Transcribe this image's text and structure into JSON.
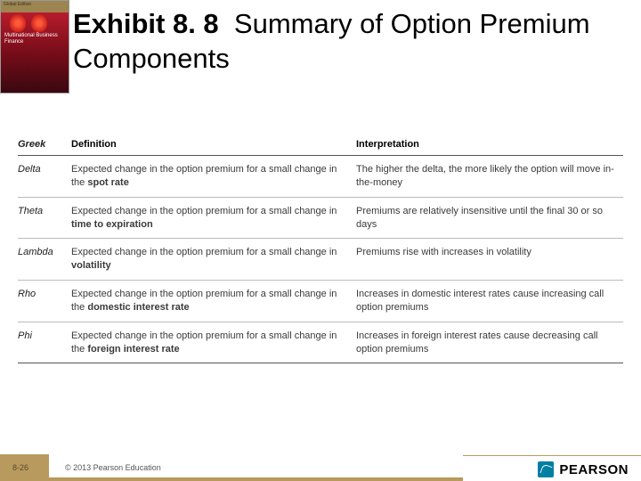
{
  "cover": {
    "series": "Global Edition",
    "book_title": "Multinational Business Finance"
  },
  "title": {
    "prefix": "Exhibit 8. 8",
    "rest": "Summary of Option Premium Components"
  },
  "table": {
    "headers": {
      "greek": "Greek",
      "definition": "Definition",
      "interpretation": "Interpretation"
    },
    "rows": [
      {
        "greek": "Delta",
        "def_lead": "Expected change in the option premium for a small change in the ",
        "def_bold": "spot rate",
        "interp": "The higher the delta, the more likely the option will move in-the-money"
      },
      {
        "greek": "Theta",
        "def_lead": "Expected change in the option premium for a small change in ",
        "def_bold": "time to expiration",
        "interp": "Premiums are relatively insensitive until the final 30 or so days"
      },
      {
        "greek": "Lambda",
        "def_lead": "Expected change in the option premium for a small change in ",
        "def_bold": "volatility",
        "interp": "Premiums rise with increases in volatility"
      },
      {
        "greek": "Rho",
        "def_lead": "Expected change in the option premium for a small change in the ",
        "def_bold": "domestic interest rate",
        "interp": "Increases in domestic interest rates cause increasing call option premiums"
      },
      {
        "greek": "Phi",
        "def_lead": "Expected change in the option premium for a small change in the ",
        "def_bold": "foreign interest rate",
        "interp": "Increases in foreign interest rates cause decreasing call option premiums"
      }
    ]
  },
  "footer": {
    "page": "8-26",
    "copyright": "© 2013 Pearson Education",
    "brand": "PEARSON"
  }
}
